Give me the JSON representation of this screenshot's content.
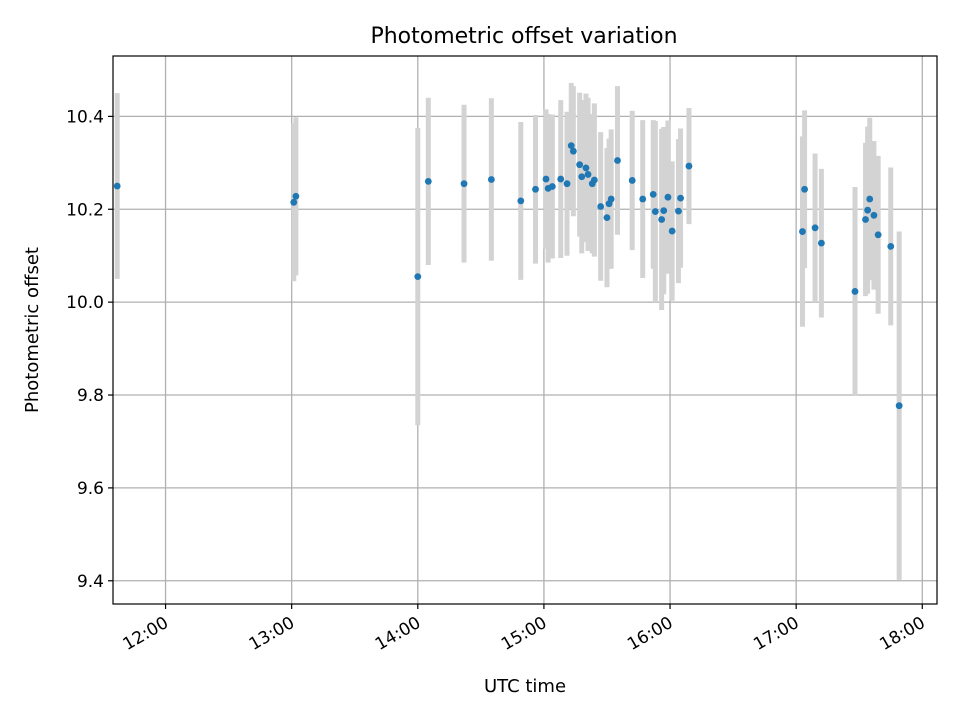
{
  "chart_data": {
    "type": "scatter",
    "title": "Photometric offset variation",
    "xlabel": "UTC time",
    "ylabel": "Photometric offset",
    "x_ticks": [
      "12:00",
      "13:00",
      "14:00",
      "15:00",
      "16:00",
      "17:00",
      "18:00"
    ],
    "y_ticks": [
      "9.4",
      "9.6",
      "9.8",
      "10.0",
      "10.2",
      "10.4"
    ],
    "xlim": [
      "11:35",
      "18:07"
    ],
    "ylim": [
      9.35,
      10.53
    ],
    "grid": true,
    "marker_color": "#1f77b4",
    "errorbar_color": "#d3d3d3",
    "points": [
      {
        "t": "11:37",
        "y": 10.25,
        "err": 0.2
      },
      {
        "t": "13:01",
        "y": 10.215,
        "err": 0.17
      },
      {
        "t": "13:02",
        "y": 10.228,
        "err": 0.17
      },
      {
        "t": "14:00",
        "y": 10.055,
        "err": 0.32
      },
      {
        "t": "14:05",
        "y": 10.26,
        "err": 0.18
      },
      {
        "t": "14:22",
        "y": 10.255,
        "err": 0.17
      },
      {
        "t": "14:35",
        "y": 10.264,
        "err": 0.175
      },
      {
        "t": "14:49",
        "y": 10.218,
        "err": 0.17
      },
      {
        "t": "14:56",
        "y": 10.243,
        "err": 0.16
      },
      {
        "t": "15:01",
        "y": 10.265,
        "err": 0.15
      },
      {
        "t": "15:02",
        "y": 10.245,
        "err": 0.16
      },
      {
        "t": "15:04",
        "y": 10.249,
        "err": 0.155
      },
      {
        "t": "15:08",
        "y": 10.265,
        "err": 0.17
      },
      {
        "t": "15:11",
        "y": 10.255,
        "err": 0.155
      },
      {
        "t": "15:13",
        "y": 10.337,
        "err": 0.135
      },
      {
        "t": "15:14",
        "y": 10.325,
        "err": 0.14
      },
      {
        "t": "15:17",
        "y": 10.296,
        "err": 0.155
      },
      {
        "t": "15:18",
        "y": 10.27,
        "err": 0.165
      },
      {
        "t": "15:20",
        "y": 10.289,
        "err": 0.16
      },
      {
        "t": "15:21",
        "y": 10.275,
        "err": 0.165
      },
      {
        "t": "15:23",
        "y": 10.255,
        "err": 0.15
      },
      {
        "t": "15:24",
        "y": 10.263,
        "err": 0.165
      },
      {
        "t": "15:27",
        "y": 10.206,
        "err": 0.16
      },
      {
        "t": "15:30",
        "y": 10.182,
        "err": 0.15
      },
      {
        "t": "15:31",
        "y": 10.212,
        "err": 0.14
      },
      {
        "t": "15:32",
        "y": 10.222,
        "err": 0.15
      },
      {
        "t": "15:35",
        "y": 10.305,
        "err": 0.16
      },
      {
        "t": "15:42",
        "y": 10.262,
        "err": 0.15
      },
      {
        "t": "15:47",
        "y": 10.222,
        "err": 0.17
      },
      {
        "t": "15:52",
        "y": 10.232,
        "err": 0.16
      },
      {
        "t": "15:53",
        "y": 10.195,
        "err": 0.195
      },
      {
        "t": "15:56",
        "y": 10.178,
        "err": 0.195
      },
      {
        "t": "15:57",
        "y": 10.197,
        "err": 0.18
      },
      {
        "t": "15:59",
        "y": 10.226,
        "err": 0.165
      },
      {
        "t": "16:01",
        "y": 10.153,
        "err": 0.15
      },
      {
        "t": "16:04",
        "y": 10.196,
        "err": 0.155
      },
      {
        "t": "16:05",
        "y": 10.224,
        "err": 0.15
      },
      {
        "t": "16:09",
        "y": 10.293,
        "err": 0.125
      },
      {
        "t": "17:03",
        "y": 10.152,
        "err": 0.205
      },
      {
        "t": "17:04",
        "y": 10.243,
        "err": 0.17
      },
      {
        "t": "17:09",
        "y": 10.16,
        "err": 0.16
      },
      {
        "t": "17:12",
        "y": 10.127,
        "err": 0.16
      },
      {
        "t": "17:28",
        "y": 10.023,
        "err": 0.225
      },
      {
        "t": "17:33",
        "y": 10.178,
        "err": 0.165
      },
      {
        "t": "17:34",
        "y": 10.198,
        "err": 0.18
      },
      {
        "t": "17:35",
        "y": 10.222,
        "err": 0.175
      },
      {
        "t": "17:37",
        "y": 10.187,
        "err": 0.16
      },
      {
        "t": "17:39",
        "y": 10.145,
        "err": 0.17
      },
      {
        "t": "17:45",
        "y": 10.12,
        "err": 0.17
      },
      {
        "t": "17:49",
        "y": 9.777,
        "err": 0.375
      }
    ]
  }
}
